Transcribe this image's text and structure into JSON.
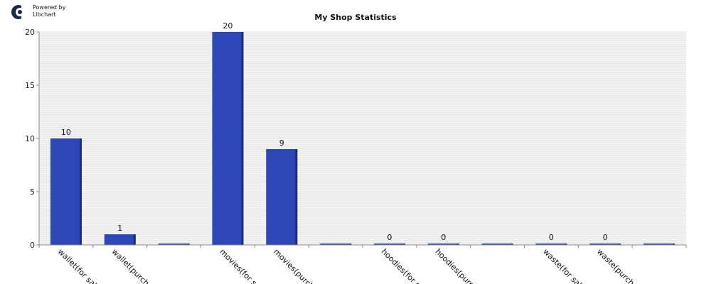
{
  "logo": {
    "line1": "Powered by",
    "line2": "Libchart"
  },
  "chart_data": {
    "type": "bar",
    "title": "My Shop Statistics",
    "categories": [
      "wallet(for sal",
      "wallet(purch",
      "",
      "movies(for sa",
      "movies(purch",
      "",
      "hoodies(for s",
      "hoodies(purc",
      "",
      "waste(for sal",
      "waste(purch",
      ""
    ],
    "values": [
      10,
      1,
      0,
      20,
      9,
      0,
      0,
      0,
      0,
      0,
      0,
      0
    ],
    "value_labels": [
      "10",
      "1",
      "",
      "20",
      "9",
      "",
      "0",
      "0",
      "",
      "0",
      "0",
      ""
    ],
    "ylim": [
      0,
      20
    ],
    "yticks": [
      0,
      5,
      10,
      15,
      20
    ],
    "grid": true,
    "colors": {
      "bar": "#2c48b6",
      "bar_side": "#1a2c80",
      "grid": "#e0e0e0",
      "plot_bg": "#f6f6f6",
      "axis": "#888888"
    }
  }
}
